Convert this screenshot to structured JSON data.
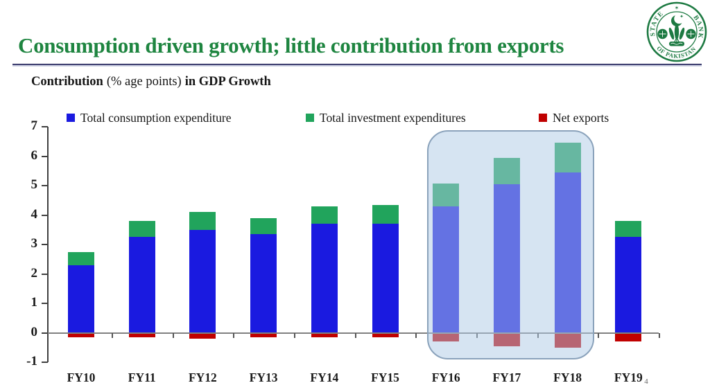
{
  "slide": {
    "title": "Consumption driven growth; little contribution from exports",
    "subtitle": {
      "bold_lead": "Contribution",
      "normal_mid": "(% age points)",
      "bold_tail": "in GDP Growth"
    },
    "page_number": "4",
    "colors": {
      "title_green": "#1e8540",
      "divider_navy": "#3c3c6e",
      "axis_dark": "#3f3f3f",
      "zero_line_gray": "#808080",
      "background": "#ffffff"
    }
  },
  "logo": {
    "ring_top_left": "STATE",
    "ring_top_right": "BANK",
    "ring_bottom": "OF PAKISTAN",
    "color": "#1d7a42"
  },
  "chart_data": {
    "type": "bar",
    "stacked": true,
    "title": "Contribution (% age points) in GDP Growth",
    "categories": [
      "FY10",
      "FY11",
      "FY12",
      "FY13",
      "FY14",
      "FY15",
      "FY16",
      "FY17",
      "FY18",
      "FY19"
    ],
    "series": [
      {
        "name": "Total consumption expenditure",
        "color": "#1a1ae0",
        "values": [
          2.3,
          3.25,
          3.5,
          3.35,
          3.7,
          3.7,
          4.3,
          5.05,
          5.45,
          3.25
        ]
      },
      {
        "name": "Total investment expenditures",
        "color": "#21a45c",
        "values": [
          0.45,
          0.55,
          0.6,
          0.55,
          0.6,
          0.65,
          0.78,
          0.9,
          1.0,
          0.55
        ]
      },
      {
        "name": "Net exports",
        "color": "#c00000",
        "values": [
          -0.15,
          -0.15,
          -0.2,
          -0.15,
          -0.15,
          -0.15,
          -0.3,
          -0.45,
          -0.5,
          -0.3
        ]
      }
    ],
    "ylim": [
      -1,
      7
    ],
    "yticks": [
      -1,
      0,
      1,
      2,
      3,
      4,
      5,
      6,
      7
    ],
    "grid": false,
    "legend_position": "top",
    "highlight": {
      "categories": [
        "FY16",
        "FY17",
        "FY18"
      ],
      "fill": "#adcae6",
      "fill_opacity": 0.5,
      "border": "#8aa2bb"
    }
  }
}
